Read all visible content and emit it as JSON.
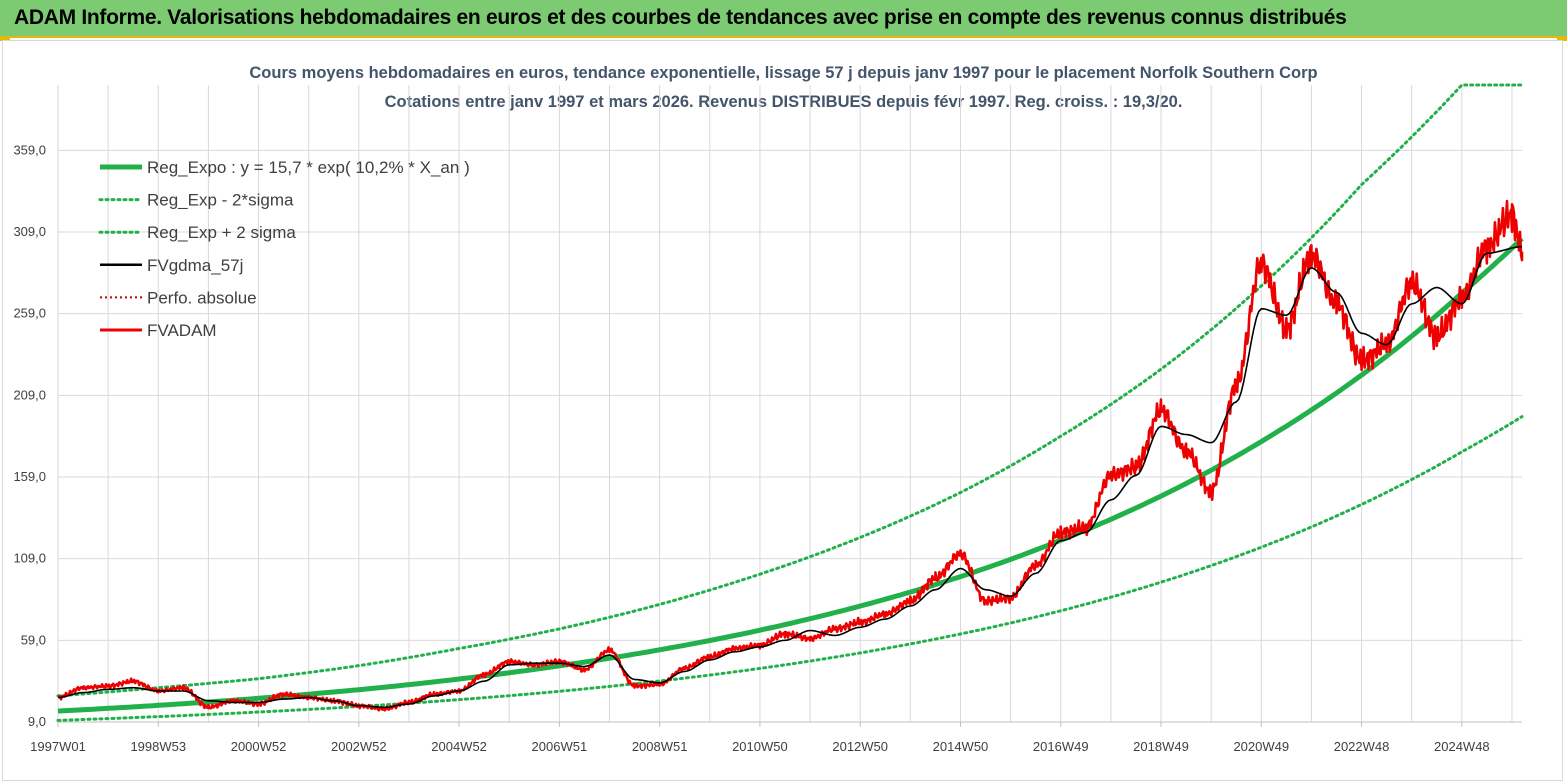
{
  "header": {
    "title": "ADAM Informe. Valorisations hebdomadaires en euros et des courbes de tendances avec prise en compte des revenus connus distribués"
  },
  "colors": {
    "header_bg": "#7ccb72",
    "reg_expo": "#22b04b",
    "sigma": "#22b04b",
    "fvgdma": "#000000",
    "perfo": "#c00000",
    "fvadam": "#ee0000",
    "grid": "#d9d9d9"
  },
  "chart_data": {
    "type": "line",
    "title": "Cours moyens hebdomadaires en euros, tendance exponentielle, lissage 57 j depuis janv 1997 pour le placement Norfolk Southern Corp",
    "subtitle": "Cotations entre janv 1997 et mars 2026. Revenus DISTRIBUES depuis févr 1997. Reg. croiss. : 19,3/20.",
    "xlabel": "",
    "ylabel": "",
    "ylim": [
      9,
      399
    ],
    "yticks": [
      9,
      59,
      109,
      159,
      209,
      259,
      309,
      359
    ],
    "ytick_labels": [
      "9,0",
      "59,0",
      "109,0",
      "159,0",
      "209,0",
      "259,0",
      "309,0",
      "359,0"
    ],
    "xlim": [
      1997.0,
      2026.2
    ],
    "xticks": [
      1997.0,
      1999.0,
      2001.0,
      2003.0,
      2005.0,
      2007.0,
      2009.0,
      2011.0,
      2013.0,
      2015.0,
      2017.0,
      2019.0,
      2021.0,
      2023.0,
      2025.0
    ],
    "xtick_labels": [
      "1997W01",
      "1998W53",
      "2000W52",
      "2002W52",
      "2004W52",
      "2006W51",
      "2008W51",
      "2010W50",
      "2012W50",
      "2014W50",
      "2016W49",
      "2018W49",
      "2020W49",
      "2022W48",
      "2024W48"
    ],
    "grid": true,
    "legend_position": "top-left",
    "legend": [
      {
        "key": "reg_expo",
        "label": "Reg_Expo : y = 15,7 * exp( 10,2% *  X_an )",
        "style": "solid-thick"
      },
      {
        "key": "sigma_minus",
        "label": "Reg_Exp - 2*sigma",
        "style": "dotted"
      },
      {
        "key": "sigma_plus",
        "label": "Reg_Exp + 2 sigma",
        "style": "dotted"
      },
      {
        "key": "fvgdma",
        "label": "FVgdma_57j",
        "style": "solid"
      },
      {
        "key": "perfo",
        "label": "Perfo. absolue",
        "style": "dotted-red"
      },
      {
        "key": "fvadam",
        "label": "FVADAM",
        "style": "solid-red"
      }
    ],
    "series": [
      {
        "name": "Reg_Expo : y = 15,7 * exp( 10,2% *  X_an )",
        "x": [
          1997.0,
          1999.0,
          2001.0,
          2003.0,
          2005.0,
          2007.0,
          2009.0,
          2011.0,
          2013.0,
          2015.0,
          2017.0,
          2019.0,
          2021.0,
          2023.0,
          2025.0,
          2026.2
        ],
        "values": [
          15.7,
          19.2,
          23.5,
          28.8,
          35.3,
          43.4,
          53.2,
          65.2,
          80.0,
          98.0,
          120.3,
          147.3,
          180.7,
          221.4,
          271.6,
          305.0
        ]
      },
      {
        "name": "Reg_Exp - 2*sigma",
        "x": [
          1997.0,
          1999.0,
          2001.0,
          2003.0,
          2005.0,
          2007.0,
          2009.0,
          2011.0,
          2013.0,
          2015.0,
          2017.0,
          2019.0,
          2021.0,
          2023.0,
          2025.0,
          2026.2
        ],
        "values": [
          10.0,
          12.3,
          15.1,
          18.5,
          22.7,
          27.8,
          34.1,
          41.8,
          51.3,
          62.9,
          77.1,
          94.6,
          116.0,
          142.2,
          174.4,
          196.0
        ]
      },
      {
        "name": "Reg_Exp + 2 sigma",
        "x": [
          1997.0,
          1999.0,
          2001.0,
          2003.0,
          2005.0,
          2007.0,
          2009.0,
          2011.0,
          2013.0,
          2015.0,
          2017.0,
          2019.0,
          2021.0,
          2023.0,
          2025.0,
          2026.2
        ],
        "values": [
          25.0,
          30.0,
          35.5,
          43.5,
          54.0,
          66.0,
          81.0,
          99.5,
          122.0,
          149.5,
          184.0,
          225.0,
          276.0,
          338.0,
          399.0,
          399.0
        ]
      },
      {
        "name": "FVgdma_57j",
        "x": [
          1997.0,
          1997.5,
          1998.0,
          1998.5,
          1999.0,
          1999.5,
          2000.0,
          2000.5,
          2001.0,
          2001.5,
          2002.0,
          2002.5,
          2003.0,
          2003.5,
          2004.0,
          2004.5,
          2005.0,
          2005.5,
          2006.0,
          2006.5,
          2007.0,
          2007.5,
          2008.0,
          2008.5,
          2009.0,
          2009.5,
          2010.0,
          2010.5,
          2011.0,
          2011.5,
          2012.0,
          2012.5,
          2013.0,
          2013.5,
          2014.0,
          2014.5,
          2015.0,
          2015.5,
          2016.0,
          2016.5,
          2017.0,
          2017.5,
          2018.0,
          2018.5,
          2019.0,
          2019.5,
          2020.0,
          2020.5,
          2021.0,
          2021.5,
          2022.0,
          2022.5,
          2023.0,
          2023.5,
          2024.0,
          2024.5,
          2025.0,
          2025.5,
          2026.2
        ],
        "values": [
          24,
          27,
          29,
          30,
          28,
          28,
          22,
          21,
          21,
          23,
          24,
          22,
          19,
          18,
          20,
          25,
          28,
          34,
          44,
          45,
          45,
          43,
          50,
          35,
          33,
          40,
          47,
          52,
          55,
          59,
          65,
          62,
          67,
          72,
          80,
          90,
          103,
          90,
          86,
          100,
          120,
          125,
          145,
          160,
          190,
          185,
          180,
          205,
          262,
          258,
          287,
          272,
          247,
          240,
          265,
          275,
          265,
          296,
          300
        ]
      },
      {
        "name": "FVADAM",
        "x": [
          1997.0,
          1997.5,
          1998.0,
          1998.5,
          1999.0,
          1999.5,
          2000.0,
          2000.5,
          2001.0,
          2001.5,
          2002.0,
          2002.5,
          2003.0,
          2003.5,
          2004.0,
          2004.5,
          2005.0,
          2005.5,
          2006.0,
          2006.5,
          2007.0,
          2007.5,
          2008.0,
          2008.5,
          2009.0,
          2009.5,
          2010.0,
          2010.5,
          2011.0,
          2011.5,
          2012.0,
          2012.5,
          2013.0,
          2013.5,
          2014.0,
          2014.5,
          2015.0,
          2015.5,
          2016.0,
          2016.5,
          2017.0,
          2017.5,
          2018.0,
          2018.5,
          2019.0,
          2019.5,
          2020.0,
          2020.5,
          2021.0,
          2021.5,
          2022.0,
          2022.5,
          2023.0,
          2023.5,
          2024.0,
          2024.5,
          2025.0,
          2025.5,
          2026.0,
          2026.2
        ],
        "values": [
          24,
          30,
          31,
          34,
          28,
          30,
          18,
          22,
          20,
          26,
          24,
          22,
          19,
          17,
          21,
          26,
          28,
          38,
          46,
          44,
          46,
          41,
          53,
          31,
          32,
          42,
          49,
          54,
          56,
          63,
          60,
          66,
          70,
          75,
          83,
          97,
          112,
          83,
          85,
          105,
          125,
          128,
          160,
          165,
          200,
          175,
          150,
          215,
          290,
          250,
          295,
          265,
          230,
          240,
          278,
          245,
          268,
          300,
          320,
          297
        ]
      }
    ]
  }
}
